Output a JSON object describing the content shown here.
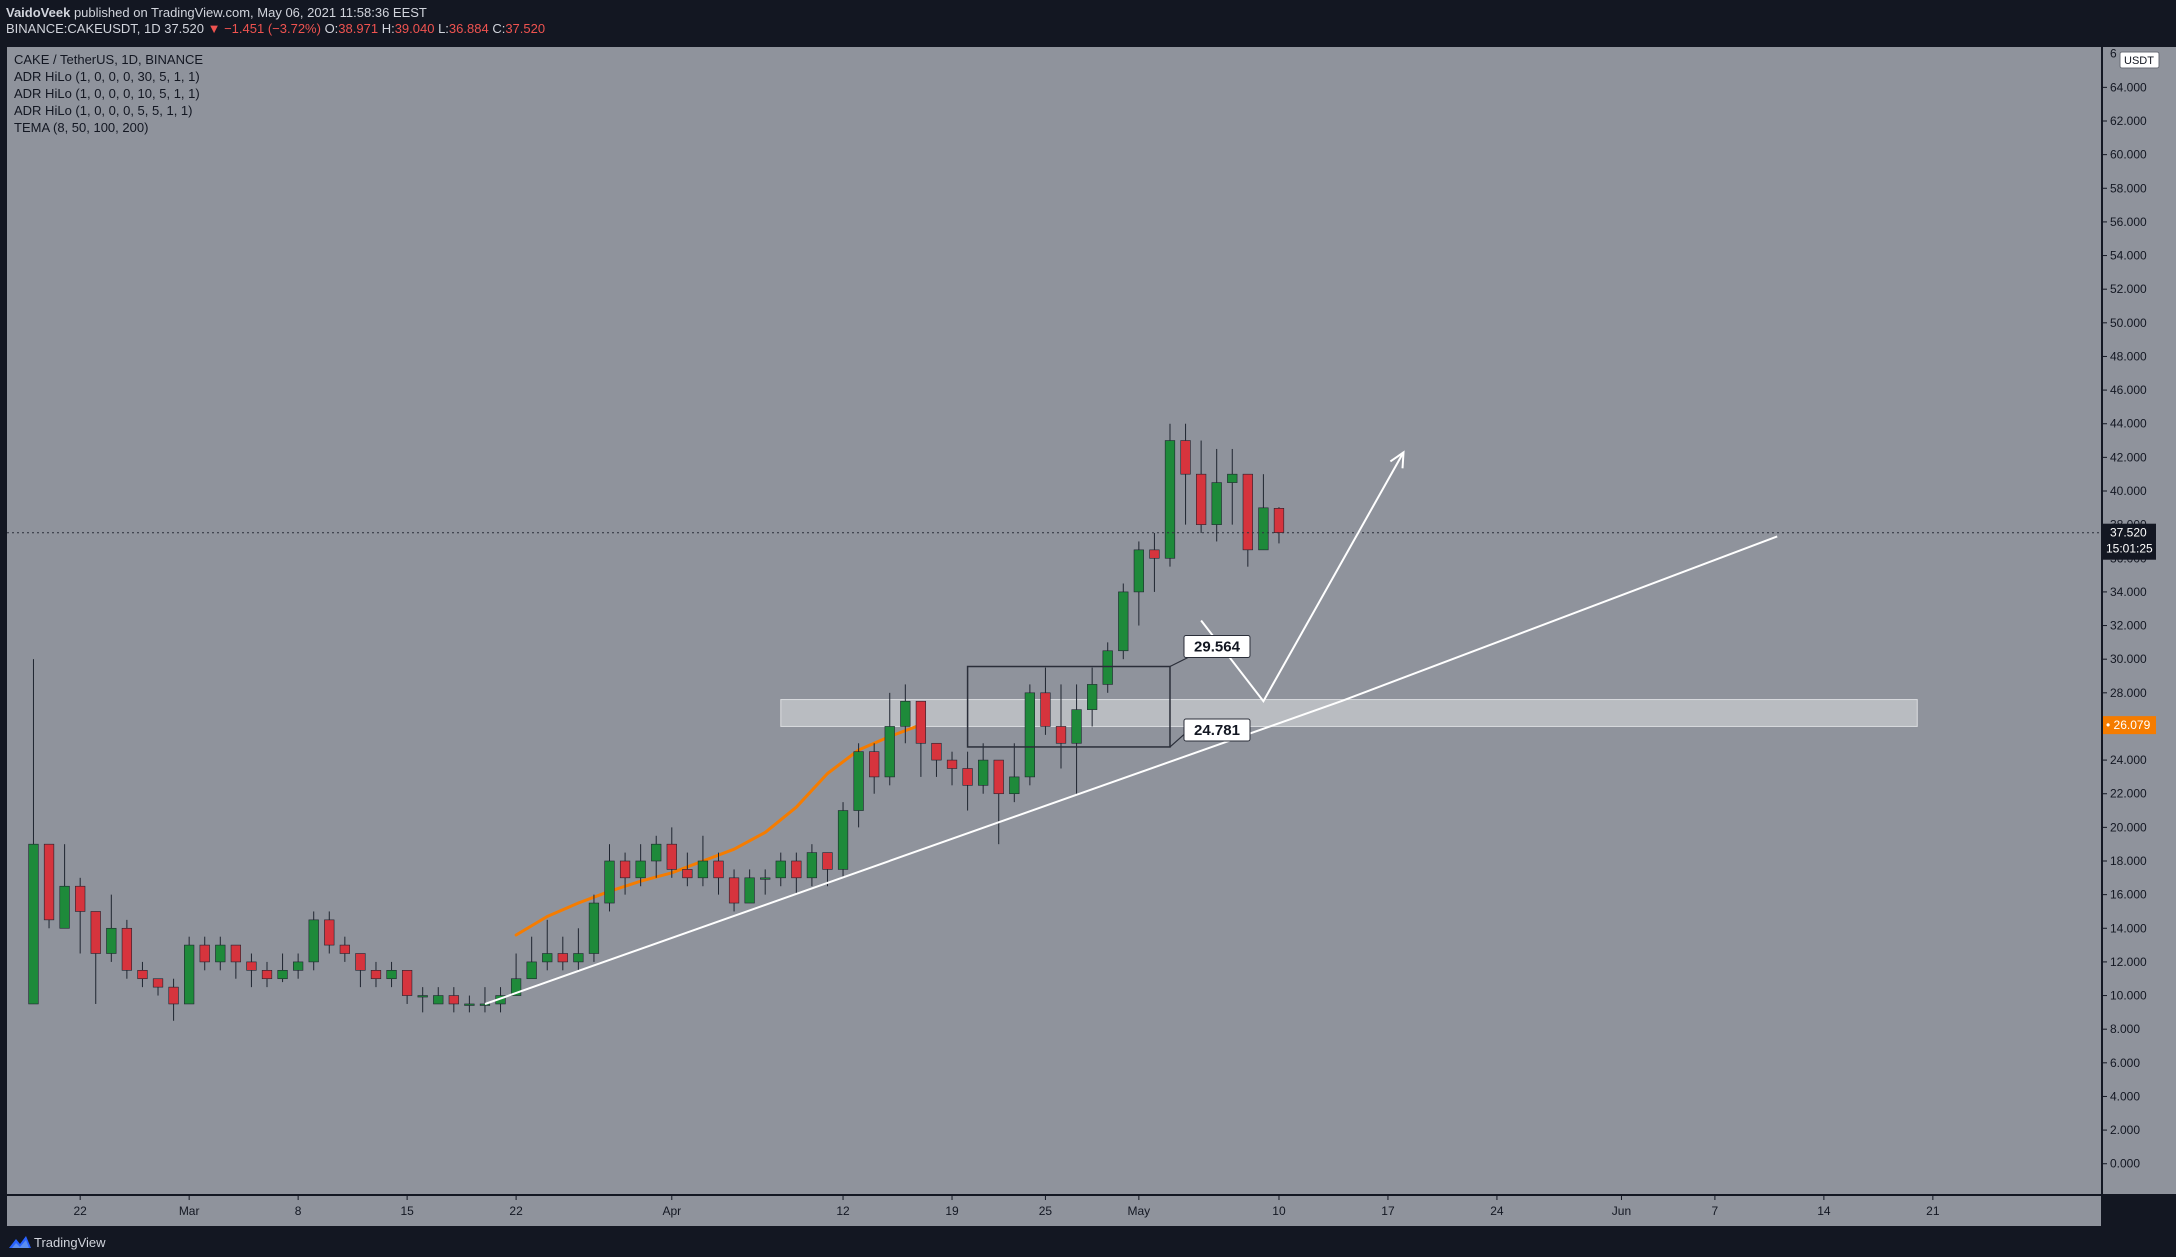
{
  "header": {
    "author": "VaidoVeek",
    "published_text": "published on TradingView.com, May 06, 2021 11:58:36 EEST",
    "symbol": "BINANCE:CAKEUSDT, 1D",
    "last": "37.520",
    "change": "▼ −1.451 (−3.72%)",
    "o_label": "O:",
    "o": "38.971",
    "h_label": "H:",
    "h": "39.040",
    "l_label": "L:",
    "l": "36.884",
    "c_label": "C:",
    "c": "37.520"
  },
  "legend": [
    "CAKE / TetherUS, 1D, BINANCE",
    "ADR HiLo (1, 0, 0, 0, 30, 5, 1, 1)",
    "ADR HiLo (1, 0, 0, 0, 10, 5, 1, 1)",
    "ADR HiLo (1, 0, 0, 0, 5, 5, 1, 1)",
    "TEMA (8, 50, 100, 200)"
  ],
  "footer": {
    "brand": "TradingView"
  },
  "colors": {
    "background": "#131722",
    "pane": "#8f939c",
    "up": "#1e8a3a",
    "down": "#d6343d",
    "tema": "#f57c00",
    "trendline": "#ffffff",
    "last_price_tag": "#131722",
    "tema_tag": "#f57c00"
  },
  "chart_data": {
    "type": "candlestick",
    "title": "CAKE / TetherUS, 1D, BINANCE",
    "unit": "USDT",
    "ylim": [
      -1.8,
      66.4
    ],
    "y_ticks": [
      0,
      2,
      4,
      6,
      8,
      10,
      12,
      14,
      16,
      18,
      20,
      22,
      24,
      26,
      28,
      30,
      32,
      34,
      36,
      38,
      40,
      42,
      44,
      46,
      48,
      50,
      52,
      54,
      56,
      58,
      60,
      62,
      64
    ],
    "top_partial_label": "6",
    "x_ticks": [
      {
        "label": "22",
        "day": 1
      },
      {
        "label": "Mar",
        "day": 8
      },
      {
        "label": "8",
        "day": 15
      },
      {
        "label": "15",
        "day": 22
      },
      {
        "label": "22",
        "day": 29
      },
      {
        "label": "Apr",
        "day": 39
      },
      {
        "label": "12",
        "day": 50
      },
      {
        "label": "19",
        "day": 57
      },
      {
        "label": "25",
        "day": 63
      },
      {
        "label": "May",
        "day": 69
      },
      {
        "label": "10",
        "day": 78
      },
      {
        "label": "17",
        "day": 85
      },
      {
        "label": "24",
        "day": 92
      },
      {
        "label": "Jun",
        "day": 100
      },
      {
        "label": "7",
        "day": 106
      },
      {
        "label": "14",
        "day": 113
      },
      {
        "label": "21",
        "day": 120
      }
    ],
    "x_range_days": [
      -3.7,
      130.8
    ],
    "candles_start_day": -2,
    "candles": [
      [
        9.5,
        19.0,
        30.0,
        9.5
      ],
      [
        19.0,
        14.5,
        19.0,
        14.0
      ],
      [
        14.0,
        16.5,
        19.0,
        14.0
      ],
      [
        16.5,
        15.0,
        17.0,
        12.5
      ],
      [
        15.0,
        12.5,
        15.0,
        9.5
      ],
      [
        12.5,
        14.0,
        16.0,
        12.0
      ],
      [
        14.0,
        11.5,
        14.5,
        11.0
      ],
      [
        11.5,
        11.0,
        12.0,
        10.5
      ],
      [
        11.0,
        10.5,
        11.0,
        10.0
      ],
      [
        10.5,
        9.5,
        11.0,
        8.5
      ],
      [
        9.5,
        13.0,
        13.5,
        9.5
      ],
      [
        13.0,
        12.0,
        13.5,
        11.5
      ],
      [
        12.0,
        13.0,
        13.5,
        11.5
      ],
      [
        13.0,
        12.0,
        13.0,
        11.0
      ],
      [
        12.0,
        11.5,
        12.5,
        10.5
      ],
      [
        11.5,
        11.0,
        12.0,
        10.5
      ],
      [
        11.0,
        11.5,
        12.5,
        10.8
      ],
      [
        11.5,
        12.0,
        12.5,
        11.0
      ],
      [
        12.0,
        14.5,
        15.0,
        11.5
      ],
      [
        14.5,
        13.0,
        15.0,
        12.5
      ],
      [
        13.0,
        12.5,
        13.5,
        12.0
      ],
      [
        12.5,
        11.5,
        12.5,
        10.5
      ],
      [
        11.5,
        11.0,
        12.0,
        10.5
      ],
      [
        11.0,
        11.5,
        12.0,
        10.5
      ],
      [
        11.5,
        10.0,
        11.5,
        9.5
      ],
      [
        10.0,
        10.0,
        10.5,
        9.0
      ],
      [
        9.5,
        10.0,
        10.5,
        9.5
      ],
      [
        10.0,
        9.5,
        10.5,
        9.0
      ],
      [
        9.5,
        9.5,
        10.0,
        9.0
      ],
      [
        9.5,
        9.5,
        10.5,
        9.0
      ],
      [
        9.5,
        10.0,
        10.5,
        9.0
      ],
      [
        10.0,
        11.0,
        12.5,
        10.0
      ],
      [
        11.0,
        12.0,
        13.5,
        11.0
      ],
      [
        12.0,
        12.5,
        14.5,
        11.5
      ],
      [
        12.5,
        12.0,
        13.5,
        11.5
      ],
      [
        12.0,
        12.5,
        14.0,
        11.5
      ],
      [
        12.5,
        15.5,
        16.0,
        12.0
      ],
      [
        15.5,
        18.0,
        19.0,
        15.0
      ],
      [
        18.0,
        17.0,
        18.5,
        16.0
      ],
      [
        17.0,
        18.0,
        19.0,
        16.5
      ],
      [
        18.0,
        19.0,
        19.5,
        17.0
      ],
      [
        19.0,
        17.5,
        20.0,
        17.0
      ],
      [
        17.5,
        17.0,
        18.5,
        16.5
      ],
      [
        17.0,
        18.0,
        19.5,
        16.5
      ],
      [
        18.0,
        17.0,
        18.5,
        16.0
      ],
      [
        17.0,
        15.5,
        17.5,
        15.0
      ],
      [
        15.5,
        17.0,
        17.5,
        15.5
      ],
      [
        17.0,
        17.0,
        17.5,
        16.0
      ],
      [
        17.0,
        18.0,
        18.5,
        16.5
      ],
      [
        18.0,
        17.0,
        18.5,
        16.0
      ],
      [
        17.0,
        18.5,
        19.0,
        16.5
      ],
      [
        18.5,
        17.5,
        18.5,
        16.5
      ],
      [
        17.5,
        21.0,
        21.5,
        17.0
      ],
      [
        21.0,
        24.5,
        25.0,
        20.0
      ],
      [
        24.5,
        23.0,
        25.0,
        22.0
      ],
      [
        23.0,
        26.0,
        28.0,
        22.5
      ],
      [
        26.0,
        27.5,
        28.5,
        25.0
      ],
      [
        27.5,
        25.0,
        27.5,
        23.0
      ],
      [
        25.0,
        24.0,
        25.0,
        23.0
      ],
      [
        24.0,
        23.5,
        24.5,
        22.5
      ],
      [
        23.5,
        22.5,
        24.5,
        21.0
      ],
      [
        22.5,
        24.0,
        25.0,
        22.0
      ],
      [
        24.0,
        22.0,
        24.0,
        19.0
      ],
      [
        22.0,
        23.0,
        25.0,
        21.5
      ],
      [
        23.0,
        28.0,
        28.5,
        22.5
      ],
      [
        28.0,
        26.0,
        29.5,
        25.5
      ],
      [
        26.0,
        25.0,
        28.5,
        23.5
      ],
      [
        25.0,
        27.0,
        28.5,
        22.0
      ],
      [
        27.0,
        28.5,
        29.5,
        26.0
      ],
      [
        28.5,
        30.5,
        31.0,
        28.0
      ],
      [
        30.5,
        34.0,
        34.5,
        30.0
      ],
      [
        34.0,
        36.5,
        37.0,
        32.0
      ],
      [
        36.5,
        36.0,
        37.5,
        34.0
      ],
      [
        36.0,
        43.0,
        44.0,
        35.5
      ],
      [
        43.0,
        41.0,
        44.0,
        38.0
      ],
      [
        41.0,
        38.0,
        43.0,
        37.5
      ],
      [
        38.0,
        40.5,
        42.5,
        37.0
      ],
      [
        40.5,
        41.0,
        42.5,
        38.0
      ],
      [
        41.0,
        36.5,
        41.0,
        35.5
      ],
      [
        36.5,
        39.0,
        41.0,
        36.5
      ],
      [
        38.971,
        37.52,
        39.04,
        36.884
      ]
    ],
    "tema": [
      [
        29,
        13.6
      ],
      [
        31,
        14.7
      ],
      [
        33,
        15.5
      ],
      [
        35,
        16.2
      ],
      [
        37,
        16.8
      ],
      [
        39,
        17.3
      ],
      [
        41,
        18.0
      ],
      [
        43,
        18.7
      ],
      [
        45,
        19.7
      ],
      [
        47,
        21.2
      ],
      [
        49,
        23.2
      ],
      [
        51,
        24.6
      ],
      [
        53,
        25.4
      ],
      [
        55,
        26.1
      ]
    ],
    "trendline": [
      [
        27,
        9.5
      ],
      [
        82,
        27.5
      ],
      [
        110,
        37.3
      ]
    ],
    "projection": [
      [
        73,
        32.3
      ],
      [
        77,
        27.5
      ],
      [
        86,
        42.3
      ]
    ],
    "zone": {
      "from_day": 46,
      "to_day": 119,
      "low": 26.0,
      "high": 27.6
    },
    "box": {
      "from_day": 58,
      "to_day": 71,
      "low": 24.781,
      "high": 29.564
    },
    "callouts": [
      {
        "text": "29.564",
        "value": 29.564
      },
      {
        "text": "24.781",
        "value": 24.781
      }
    ],
    "price_line": 37.52,
    "price_tag": {
      "value": "37.520",
      "countdown": "15:01:25"
    },
    "tema_tag": {
      "value": "26.079"
    },
    "currency_badge": "USDT"
  }
}
